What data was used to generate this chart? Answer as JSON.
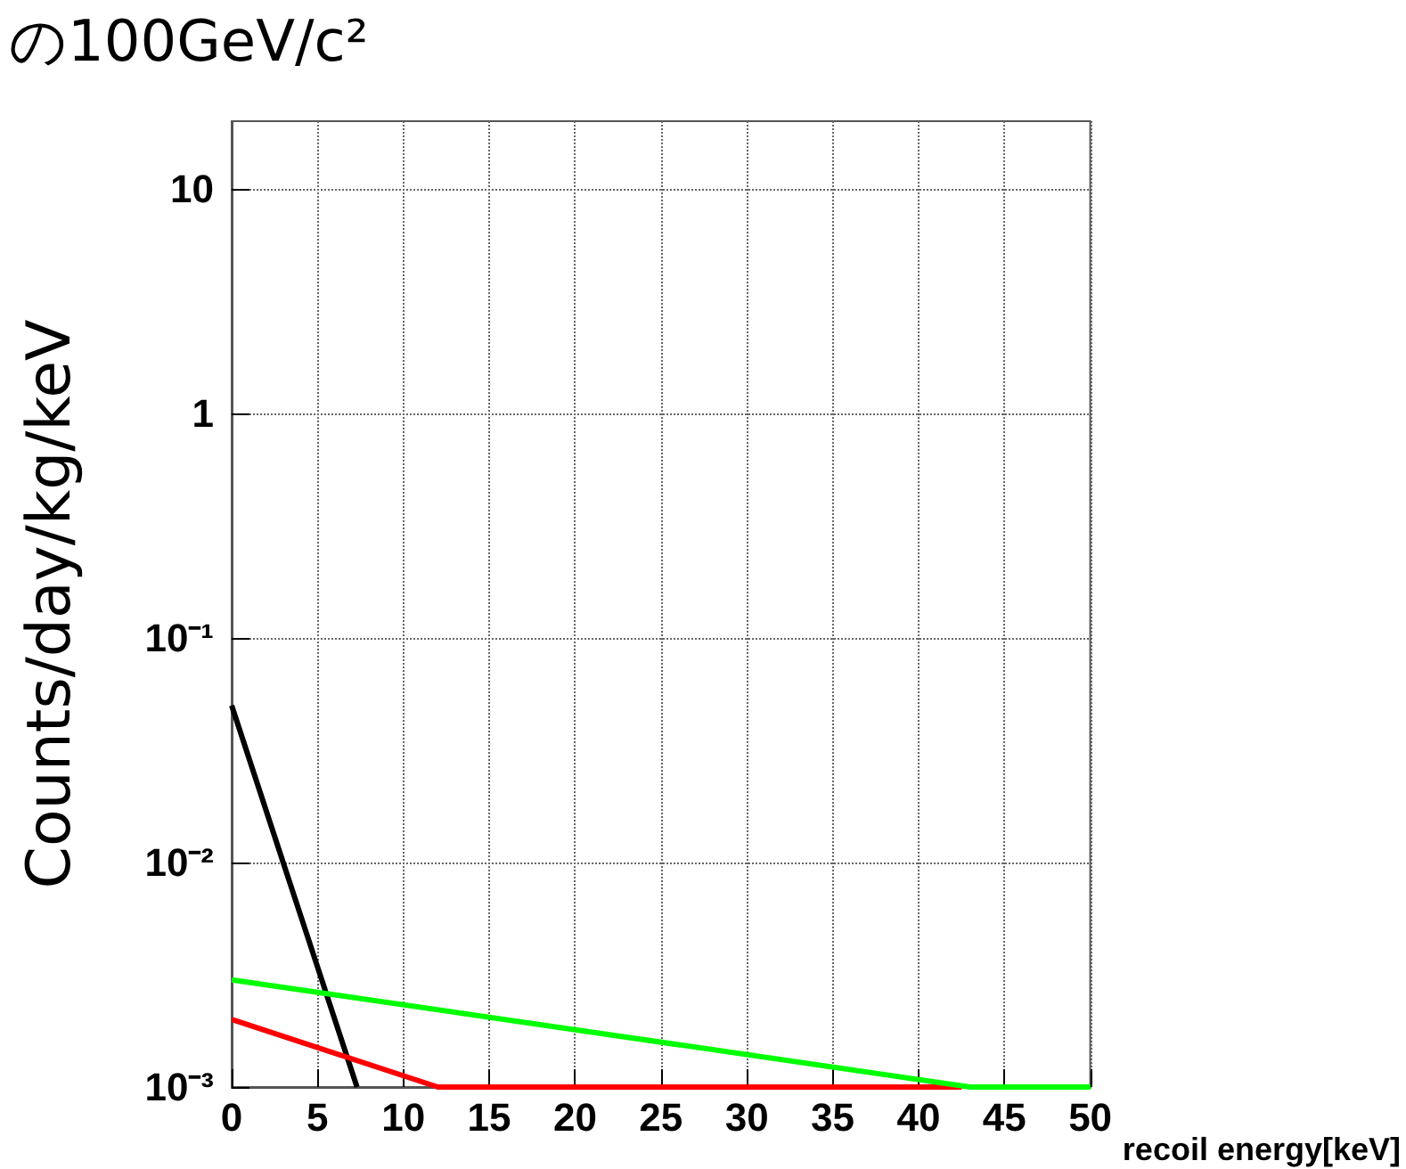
{
  "chart_data": {
    "type": "line",
    "title": "の100GeV/c²",
    "xlabel": "recoil energy[keV]",
    "ylabel": "Counts/day/kg/keV",
    "series": [
      {
        "color": "#000000",
        "x": [
          0,
          3,
          7.3
        ],
        "values": [
          0.05,
          0.01,
          0.001
        ]
      },
      {
        "color": "#ff0000",
        "x": [
          0,
          12,
          42.5
        ],
        "values": [
          0.002,
          0.001,
          0.001
        ]
      },
      {
        "color": "#00ff00",
        "x": [
          0,
          20,
          43,
          50
        ],
        "values": [
          0.003,
          0.0018,
          0.001,
          0.001
        ]
      }
    ],
    "xlim": [
      0,
      50
    ],
    "xticks": [
      0,
      5,
      10,
      15,
      20,
      25,
      30,
      35,
      40,
      45,
      50
    ],
    "ylim": [
      0.001,
      20
    ],
    "yticks": [
      {
        "value": 0.001,
        "label": "10⁻³"
      },
      {
        "value": 0.01,
        "label": "10⁻²"
      },
      {
        "value": 0.1,
        "label": "10⁻¹"
      },
      1,
      10
    ],
    "log": "y",
    "grid": true,
    "marker": "none",
    "line_style": "solid"
  }
}
